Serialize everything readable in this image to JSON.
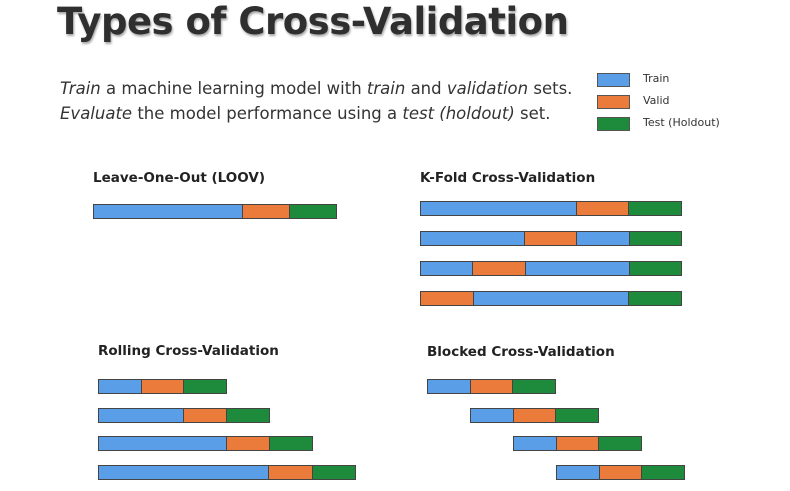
{
  "title": "Types of Cross-Validation",
  "description": {
    "line1": [
      {
        "text": "Train",
        "italic": true
      },
      {
        "text": " a machine learning model with ",
        "italic": false
      },
      {
        "text": "train",
        "italic": true
      },
      {
        "text": " and ",
        "italic": false
      },
      {
        "text": "validation",
        "italic": true
      },
      {
        "text": " sets.",
        "italic": false
      }
    ],
    "line2": [
      {
        "text": "Evaluate",
        "italic": true
      },
      {
        "text": " the model performance using a ",
        "italic": false
      },
      {
        "text": "test (holdout)",
        "italic": true
      },
      {
        "text": " set.",
        "italic": false
      }
    ]
  },
  "colors": {
    "train": "#5b9ee8",
    "valid": "#ea7b3b",
    "test": "#1e8a3c"
  },
  "legend": [
    {
      "key": "train",
      "label": "Train"
    },
    {
      "key": "valid",
      "label": "Valid"
    },
    {
      "key": "test",
      "label": "Test (Holdout)"
    }
  ],
  "panels": {
    "loov": {
      "title": "Leave-One-Out (LOOV)",
      "rows": [
        [
          {
            "type": "train",
            "units": 3.2
          },
          {
            "type": "valid",
            "units": 1
          },
          {
            "type": "test",
            "units": 1
          }
        ]
      ]
    },
    "kfold": {
      "title": "K-Fold Cross-Validation",
      "rows": [
        [
          {
            "type": "train",
            "units": 3
          },
          {
            "type": "valid",
            "units": 1
          },
          {
            "type": "test",
            "units": 1
          }
        ],
        [
          {
            "type": "train",
            "units": 2
          },
          {
            "type": "valid",
            "units": 1
          },
          {
            "type": "train",
            "units": 1
          },
          {
            "type": "test",
            "units": 1
          }
        ],
        [
          {
            "type": "train",
            "units": 1
          },
          {
            "type": "valid",
            "units": 1
          },
          {
            "type": "train",
            "units": 2
          },
          {
            "type": "test",
            "units": 1
          }
        ],
        [
          {
            "type": "valid",
            "units": 1
          },
          {
            "type": "train",
            "units": 3
          },
          {
            "type": "test",
            "units": 1
          }
        ]
      ]
    },
    "rolling": {
      "title": "Rolling Cross-Validation",
      "rows": [
        [
          {
            "type": "train",
            "units": 1
          },
          {
            "type": "valid",
            "units": 1
          },
          {
            "type": "test",
            "units": 1
          }
        ],
        [
          {
            "type": "train",
            "units": 2
          },
          {
            "type": "valid",
            "units": 1
          },
          {
            "type": "test",
            "units": 1
          }
        ],
        [
          {
            "type": "train",
            "units": 3
          },
          {
            "type": "valid",
            "units": 1
          },
          {
            "type": "test",
            "units": 1
          }
        ],
        [
          {
            "type": "train",
            "units": 4
          },
          {
            "type": "valid",
            "units": 1
          },
          {
            "type": "test",
            "units": 1
          }
        ]
      ]
    },
    "blocked": {
      "title": "Blocked Cross-Validation",
      "rows": [
        [
          {
            "type": "train",
            "units": 1
          },
          {
            "type": "valid",
            "units": 1
          },
          {
            "type": "test",
            "units": 1
          }
        ],
        [
          {
            "type": "train",
            "units": 1
          },
          {
            "type": "valid",
            "units": 1
          },
          {
            "type": "test",
            "units": 1
          }
        ],
        [
          {
            "type": "train",
            "units": 1
          },
          {
            "type": "valid",
            "units": 1
          },
          {
            "type": "test",
            "units": 1
          }
        ],
        [
          {
            "type": "train",
            "units": 1
          },
          {
            "type": "valid",
            "units": 1
          },
          {
            "type": "test",
            "units": 1
          }
        ]
      ]
    }
  }
}
